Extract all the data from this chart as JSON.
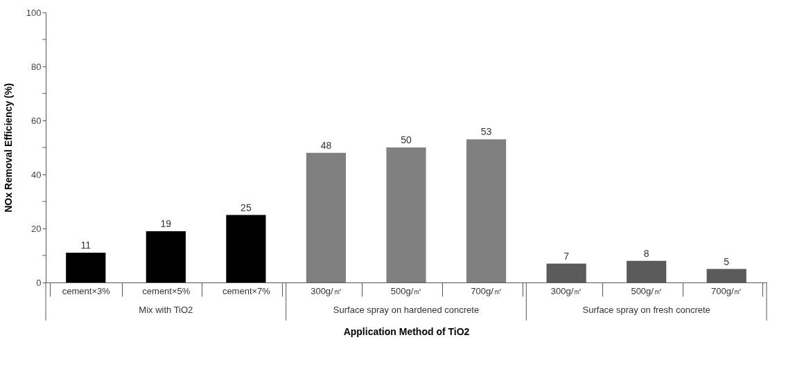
{
  "chart_data": {
    "type": "bar",
    "xlabel": "Application Method of TiO2",
    "ylabel": "NOx Removal Efficiency (%)",
    "categories": [
      "cement×3%",
      "cement×5%",
      "cement×7%",
      "300g/㎡",
      "500g/㎡",
      "700g/㎡",
      "300g/㎡",
      "500g/㎡",
      "700g/㎡"
    ],
    "values": [
      11,
      19,
      25,
      48,
      50,
      53,
      7,
      8,
      5
    ],
    "colors": [
      "#000000",
      "#000000",
      "#000000",
      "#808080",
      "#808080",
      "#808080",
      "#5a5a5a",
      "#5a5a5a",
      "#5a5a5a"
    ],
    "ylim": [
      0,
      100
    ],
    "yticks": [
      0,
      {
        "value": 10,
        "label": null
      },
      20,
      {
        "value": 30,
        "label": null
      },
      40,
      {
        "value": 50,
        "label": null
      },
      60,
      {
        "value": 70,
        "label": null
      },
      80,
      {
        "value": 90,
        "label": null
      },
      100
    ],
    "data_labels": true,
    "grid": false,
    "annotations": [
      "Mix with TiO2",
      "Surface spray on hardened concrete",
      "Surface spray on fresh concrete"
    ]
  }
}
